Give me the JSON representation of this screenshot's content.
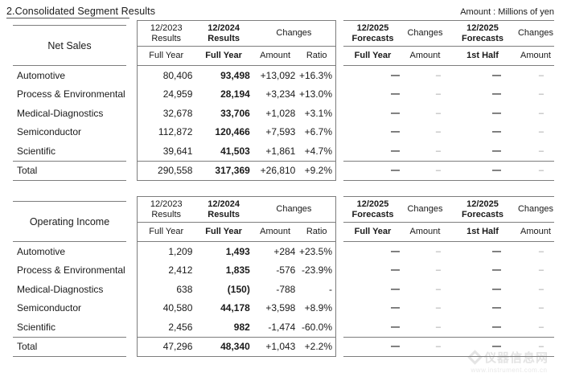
{
  "header": {
    "title": "2.Consolidated Segment Results",
    "unit_note": "Amount : Millions of yen"
  },
  "columns": {
    "results_2023": "12/2023\nResults",
    "results_2024": "12/2024\nResults",
    "changes": "Changes",
    "full_year": "Full Year",
    "amount": "Amount",
    "ratio": "Ratio",
    "forecasts_2025": "12/2025\nForecasts",
    "first_half": "1st Half"
  },
  "tables": [
    {
      "name": "Net Sales",
      "rows": [
        {
          "label": "Automotive",
          "r2023": "80,406",
          "r2024": "93,498",
          "amount": "+13,092",
          "ratio": "+16.3%",
          "fc_full": "—",
          "chg_full": "–",
          "fc_half": "—",
          "chg_half": "–",
          "total": false
        },
        {
          "label": "Process & Environmental",
          "r2023": "24,959",
          "r2024": "28,194",
          "amount": "+3,234",
          "ratio": "+13.0%",
          "fc_full": "—",
          "chg_full": "–",
          "fc_half": "—",
          "chg_half": "–",
          "total": false
        },
        {
          "label": "Medical-Diagnostics",
          "r2023": "32,678",
          "r2024": "33,706",
          "amount": "+1,028",
          "ratio": "+3.1%",
          "fc_full": "—",
          "chg_full": "–",
          "fc_half": "—",
          "chg_half": "–",
          "total": false
        },
        {
          "label": "Semiconductor",
          "r2023": "112,872",
          "r2024": "120,466",
          "amount": "+7,593",
          "ratio": "+6.7%",
          "fc_full": "—",
          "chg_full": "–",
          "fc_half": "—",
          "chg_half": "–",
          "total": false
        },
        {
          "label": "Scientific",
          "r2023": "39,641",
          "r2024": "41,503",
          "amount": "+1,861",
          "ratio": "+4.7%",
          "fc_full": "—",
          "chg_full": "–",
          "fc_half": "—",
          "chg_half": "–",
          "total": false
        },
        {
          "label": "Total",
          "r2023": "290,558",
          "r2024": "317,369",
          "amount": "+26,810",
          "ratio": "+9.2%",
          "fc_full": "—",
          "chg_full": "–",
          "fc_half": "—",
          "chg_half": "–",
          "total": true
        }
      ]
    },
    {
      "name": "Operating Income",
      "rows": [
        {
          "label": "Automotive",
          "r2023": "1,209",
          "r2024": "1,493",
          "amount": "+284",
          "ratio": "+23.5%",
          "fc_full": "—",
          "chg_full": "–",
          "fc_half": "—",
          "chg_half": "–",
          "total": false
        },
        {
          "label": "Process & Environmental",
          "r2023": "2,412",
          "r2024": "1,835",
          "amount": "-576",
          "ratio": "-23.9%",
          "fc_full": "—",
          "chg_full": "–",
          "fc_half": "—",
          "chg_half": "–",
          "total": false
        },
        {
          "label": "Medical-Diagnostics",
          "r2023": "638",
          "r2024": "(150)",
          "amount": "-788",
          "ratio": "-",
          "fc_full": "—",
          "chg_full": "–",
          "fc_half": "—",
          "chg_half": "–",
          "total": false
        },
        {
          "label": "Semiconductor",
          "r2023": "40,580",
          "r2024": "44,178",
          "amount": "+3,598",
          "ratio": "+8.9%",
          "fc_full": "—",
          "chg_full": "–",
          "fc_half": "—",
          "chg_half": "–",
          "total": false
        },
        {
          "label": "Scientific",
          "r2023": "2,456",
          "r2024": "982",
          "amount": "-1,474",
          "ratio": "-60.0%",
          "fc_full": "—",
          "chg_full": "–",
          "fc_half": "—",
          "chg_half": "–",
          "total": false
        },
        {
          "label": "Total",
          "r2023": "47,296",
          "r2024": "48,340",
          "amount": "+1,043",
          "ratio": "+2.2%",
          "fc_full": "—",
          "chg_full": "–",
          "fc_half": "—",
          "chg_half": "–",
          "total": true
        }
      ]
    }
  ],
  "watermark": {
    "site_name": "仪器信息网",
    "site_url": "www.instrument.com.cn"
  }
}
